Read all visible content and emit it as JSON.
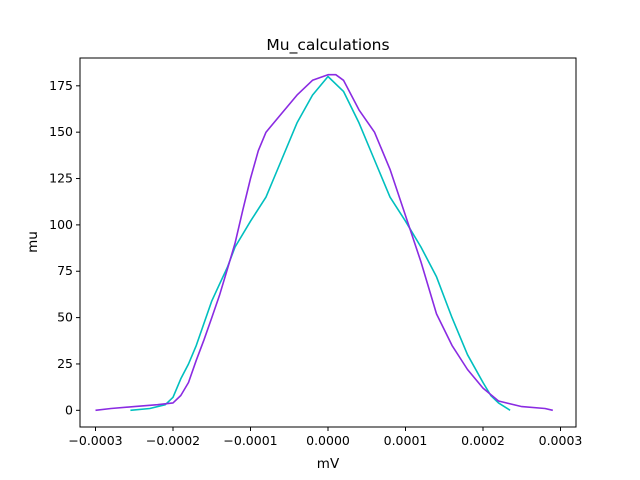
{
  "chart_data": {
    "type": "line",
    "title": "Mu_calculations",
    "xlabel": "mV",
    "ylabel": "mu",
    "xlim": [
      -0.00032,
      0.00032
    ],
    "ylim": [
      -9,
      190
    ],
    "grid": false,
    "x_ticks": [
      {
        "value": -0.0003,
        "label": "−0.0003"
      },
      {
        "value": -0.0002,
        "label": "−0.0002"
      },
      {
        "value": -0.0001,
        "label": "−0.0001"
      },
      {
        "value": 0,
        "label": "0.0000"
      },
      {
        "value": 0.0001,
        "label": "0.0001"
      },
      {
        "value": 0.0002,
        "label": "0.0002"
      },
      {
        "value": 0.0003,
        "label": "0.0003"
      }
    ],
    "y_ticks": [
      {
        "value": 0,
        "label": "0"
      },
      {
        "value": 25,
        "label": "25"
      },
      {
        "value": 50,
        "label": "50"
      },
      {
        "value": 75,
        "label": "75"
      },
      {
        "value": 100,
        "label": "100"
      },
      {
        "value": 125,
        "label": "125"
      },
      {
        "value": 150,
        "label": "150"
      },
      {
        "value": 175,
        "label": "175"
      }
    ],
    "series": [
      {
        "color": "#00bfbf",
        "points": [
          [
            -0.000255,
            0
          ],
          [
            -0.00023,
            1
          ],
          [
            -0.00021,
            3
          ],
          [
            -0.0002,
            7
          ],
          [
            -0.00019,
            17
          ],
          [
            -0.00018,
            25
          ],
          [
            -0.00017,
            35
          ],
          [
            -0.00016,
            47
          ],
          [
            -0.00015,
            59
          ],
          [
            -0.00014,
            68
          ],
          [
            -0.00013,
            77
          ],
          [
            -0.00012,
            88
          ],
          [
            -0.0001,
            102
          ],
          [
            -8e-05,
            115
          ],
          [
            -6e-05,
            135
          ],
          [
            -4e-05,
            155
          ],
          [
            -2e-05,
            170
          ],
          [
            0,
            180
          ],
          [
            2e-05,
            172
          ],
          [
            4e-05,
            155
          ],
          [
            6e-05,
            135
          ],
          [
            8e-05,
            115
          ],
          [
            0.0001,
            102
          ],
          [
            0.00012,
            88
          ],
          [
            0.00014,
            72
          ],
          [
            0.00016,
            50
          ],
          [
            0.00018,
            30
          ],
          [
            0.0002,
            15
          ],
          [
            0.00021,
            8
          ],
          [
            0.00022,
            4
          ],
          [
            0.000235,
            0
          ]
        ]
      },
      {
        "color": "#8a2be2",
        "points": [
          [
            -0.0003,
            0
          ],
          [
            -0.00028,
            1
          ],
          [
            -0.00025,
            2
          ],
          [
            -0.00022,
            3
          ],
          [
            -0.0002,
            4
          ],
          [
            -0.00019,
            8
          ],
          [
            -0.00018,
            15
          ],
          [
            -0.00017,
            27
          ],
          [
            -0.00016,
            38
          ],
          [
            -0.00015,
            50
          ],
          [
            -0.00014,
            62
          ],
          [
            -0.00013,
            76
          ],
          [
            -0.00012,
            90
          ],
          [
            -0.00011,
            108
          ],
          [
            -0.0001,
            125
          ],
          [
            -9e-05,
            140
          ],
          [
            -8e-05,
            150
          ],
          [
            -6e-05,
            160
          ],
          [
            -4e-05,
            170
          ],
          [
            -2e-05,
            178
          ],
          [
            0,
            181
          ],
          [
            1e-05,
            181
          ],
          [
            2e-05,
            178
          ],
          [
            4e-05,
            162
          ],
          [
            6e-05,
            150
          ],
          [
            8e-05,
            130
          ],
          [
            0.0001,
            105
          ],
          [
            0.00012,
            80
          ],
          [
            0.00014,
            52
          ],
          [
            0.00016,
            35
          ],
          [
            0.00018,
            22
          ],
          [
            0.0002,
            12
          ],
          [
            0.00022,
            5
          ],
          [
            0.00025,
            2
          ],
          [
            0.00028,
            1
          ],
          [
            0.00029,
            0
          ]
        ]
      }
    ]
  }
}
